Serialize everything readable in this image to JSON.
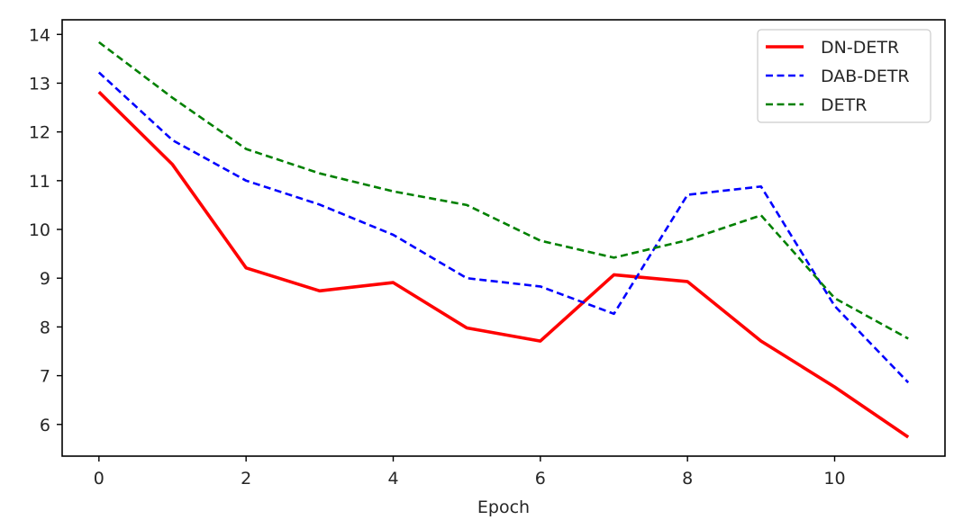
{
  "chart_data": {
    "type": "line",
    "title": "",
    "xlabel": "Epoch",
    "ylabel": "",
    "x": [
      0,
      1,
      2,
      3,
      4,
      5,
      6,
      7,
      8,
      9,
      10,
      11
    ],
    "xlim": [
      -0.5,
      11.5
    ],
    "ylim": [
      5.35,
      14.3
    ],
    "xticks": [
      0,
      2,
      4,
      6,
      8,
      10
    ],
    "yticks": [
      6,
      7,
      8,
      9,
      10,
      11,
      12,
      13,
      14
    ],
    "grid": false,
    "legend_position": "top-right",
    "series": [
      {
        "name": "DN-DETR",
        "color": "#ff0000",
        "style": "solid",
        "values": [
          12.82,
          11.33,
          9.21,
          8.74,
          8.91,
          7.98,
          7.71,
          9.07,
          8.93,
          7.71,
          6.77,
          5.74
        ]
      },
      {
        "name": "DAB-DETR",
        "color": "#0000ff",
        "style": "dashed",
        "values": [
          13.22,
          11.83,
          11.0,
          10.51,
          9.89,
          9.0,
          8.83,
          8.27,
          10.71,
          10.88,
          8.43,
          6.86
        ]
      },
      {
        "name": "DETR",
        "color": "#008000",
        "style": "dashed",
        "values": [
          13.84,
          12.7,
          11.65,
          11.15,
          10.78,
          10.5,
          9.77,
          9.42,
          9.78,
          10.29,
          8.59,
          7.76
        ]
      }
    ]
  }
}
